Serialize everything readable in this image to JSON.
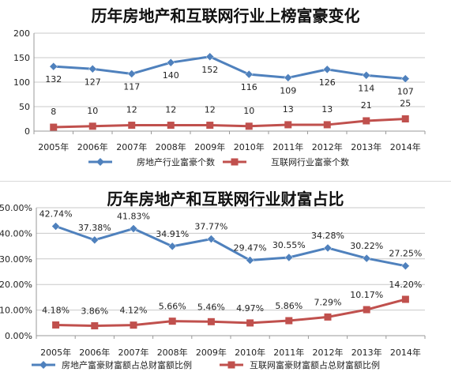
{
  "chart_data": [
    {
      "type": "line",
      "title": "历年房地产和互联网行业上榜富豪变化",
      "categories": [
        "2005年",
        "2006年",
        "2007年",
        "2008年",
        "2009年",
        "2010年",
        "2011年",
        "2012年",
        "2013年",
        "2014年"
      ],
      "ylim": [
        0,
        200
      ],
      "yticks": [
        "0",
        "50",
        "100",
        "150",
        "200"
      ],
      "grid": true,
      "legend": "bottom",
      "series": [
        {
          "name": "房地产行业富豪个数",
          "color": "#4f81bd",
          "marker": "diamond",
          "values": [
            132,
            127,
            117,
            140,
            152,
            116,
            109,
            126,
            114,
            107
          ],
          "labels": [
            "132",
            "127",
            "117",
            "140",
            "152",
            "116",
            "109",
            "126",
            "114",
            "107"
          ]
        },
        {
          "name": "互联网行业富豪个数",
          "color": "#c0504d",
          "marker": "square",
          "values": [
            8,
            10,
            12,
            12,
            12,
            10,
            13,
            13,
            21,
            25
          ],
          "labels": [
            "8",
            "10",
            "12",
            "12",
            "12",
            "10",
            "13",
            "13",
            "21",
            "25"
          ]
        }
      ]
    },
    {
      "type": "line",
      "title": "历年房地产和互联网行业财富占比",
      "categories": [
        "2005年",
        "2006年",
        "2007年",
        "2008年",
        "2009年",
        "2010年",
        "2011年",
        "2012年",
        "2013年",
        "2014年"
      ],
      "ylim": [
        0,
        50
      ],
      "yticks": [
        "0.00%",
        "10.00%",
        "20.00%",
        "30.00%",
        "40.00%",
        "50.00%"
      ],
      "grid": true,
      "legend": "bottom",
      "series": [
        {
          "name": "房地产富豪财富额占总财富额比例",
          "color": "#4f81bd",
          "marker": "diamond",
          "values": [
            42.74,
            37.38,
            41.83,
            34.91,
            37.77,
            29.47,
            30.55,
            34.28,
            30.22,
            27.25
          ],
          "labels": [
            "42.74%",
            "37.38%",
            "41.83%",
            "34.91%",
            "37.77%",
            "29.47%",
            "30.55%",
            "34.28%",
            "30.22%",
            "27.25%"
          ]
        },
        {
          "name": "互联网富豪财富额占总财富额比例",
          "color": "#c0504d",
          "marker": "square",
          "values": [
            4.18,
            3.86,
            4.12,
            5.66,
            5.46,
            4.97,
            5.86,
            7.29,
            10.17,
            14.2
          ],
          "labels": [
            "4.18%",
            "3.86%",
            "4.12%",
            "5.66%",
            "5.46%",
            "4.97%",
            "5.86%",
            "7.29%",
            "10.17%",
            "14.20%"
          ]
        }
      ]
    }
  ]
}
